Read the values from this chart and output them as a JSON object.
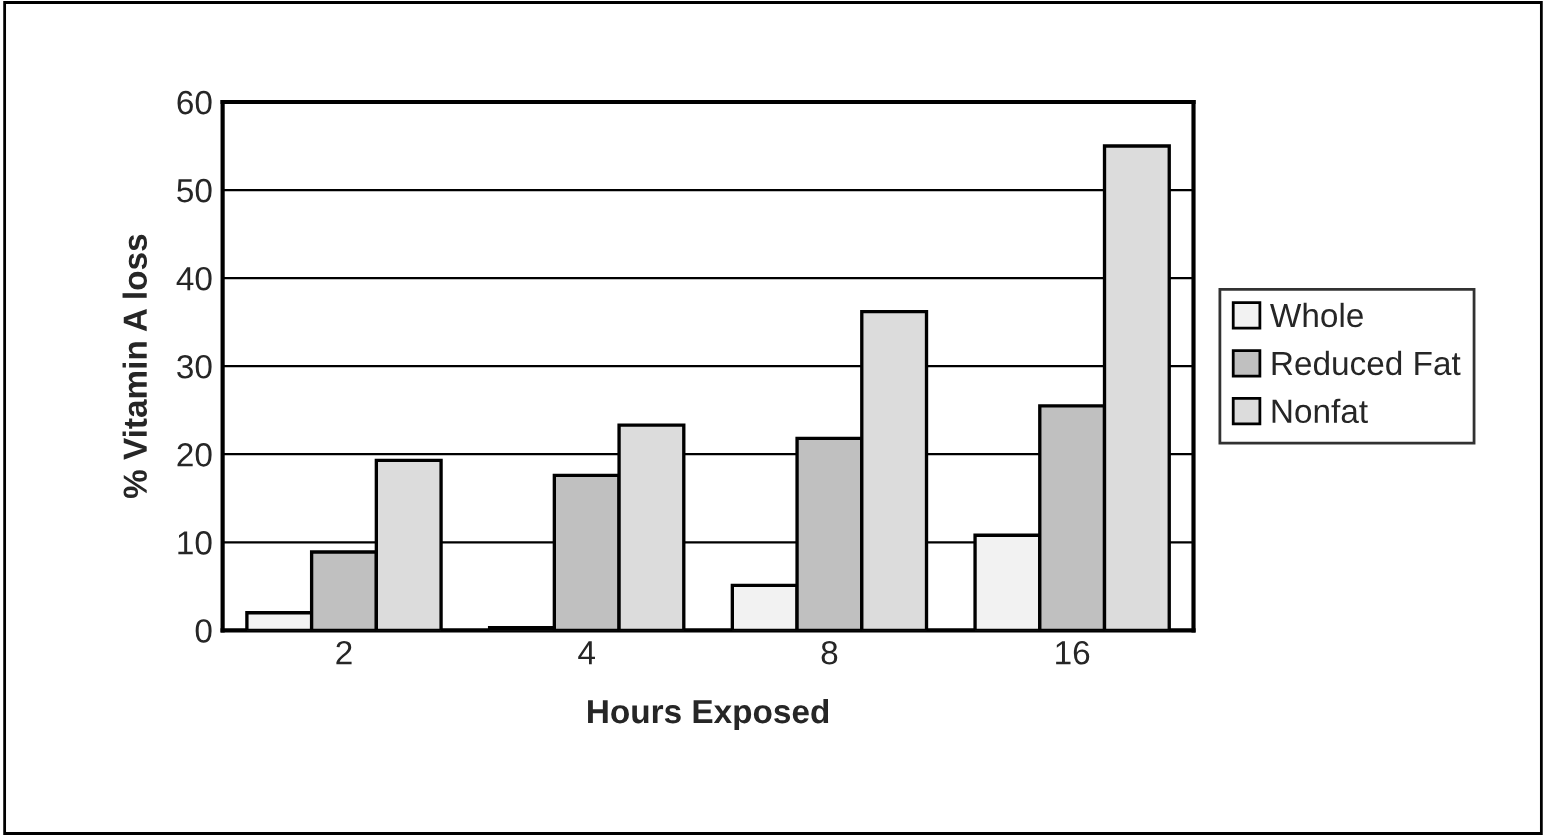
{
  "chart_data": {
    "type": "bar",
    "xlabel": "Hours Exposed",
    "ylabel": "% Vitamin A loss",
    "categories": [
      "2",
      "4",
      "8",
      "16"
    ],
    "series": [
      {
        "name": "Whole",
        "color": "#f2f2f2",
        "values": [
          2.0,
          0.3,
          5.1,
          10.8
        ]
      },
      {
        "name": "Reduced Fat",
        "color": "#c0c0c0",
        "values": [
          8.9,
          17.6,
          21.8,
          25.5
        ]
      },
      {
        "name": "Nonfat",
        "color": "#dcdcdc",
        "values": [
          19.3,
          23.3,
          36.2,
          55.0
        ]
      }
    ],
    "ylim": [
      0,
      60
    ],
    "yticks": [
      0,
      10,
      20,
      30,
      40,
      50,
      60
    ],
    "grid": "y",
    "legend": "right"
  }
}
